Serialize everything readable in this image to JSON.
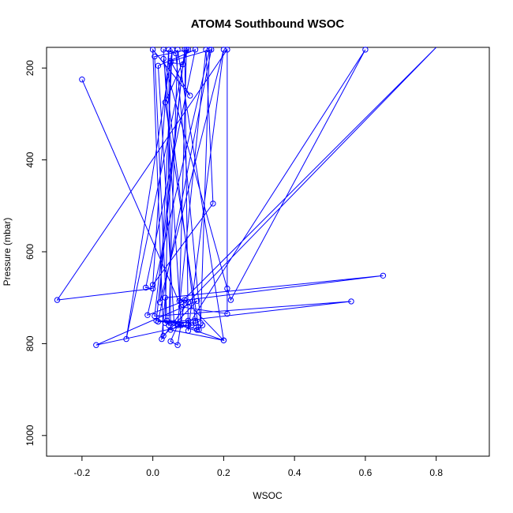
{
  "chart_data": {
    "type": "line",
    "title": "ATOM4 Southbound WSOC",
    "xlabel": "WSOC",
    "ylabel": "Pressure (mbar)",
    "xlim": [
      -0.3,
      0.95
    ],
    "ylim": [
      1045,
      155
    ],
    "y_inverted": true,
    "x_ticks": [
      {
        "value": -0.2,
        "label": "-0.2"
      },
      {
        "value": 0.0,
        "label": "0.0"
      },
      {
        "value": 0.2,
        "label": "0.2"
      },
      {
        "value": 0.4,
        "label": "0.4"
      },
      {
        "value": 0.6,
        "label": "0.6"
      },
      {
        "value": 0.8,
        "label": "0.8"
      }
    ],
    "y_ticks": [
      {
        "value": 200,
        "label": "200"
      },
      {
        "value": 400,
        "label": "400"
      },
      {
        "value": 600,
        "label": "600"
      },
      {
        "value": 800,
        "label": "800"
      },
      {
        "value": 1000,
        "label": "1000"
      }
    ],
    "marker": "open-circle",
    "grid": false,
    "color": "#0000ff",
    "series": [
      {
        "points": [
          [
            -0.2,
            225
          ],
          [
            0.08,
            720
          ],
          [
            0.21,
            735
          ],
          [
            0.21,
            160
          ],
          [
            -0.27,
            705
          ],
          [
            0.0,
            680
          ],
          [
            -0.02,
            678
          ],
          [
            0.12,
            160
          ],
          [
            0.015,
            195
          ],
          [
            0.06,
            755
          ],
          [
            0.13,
            770
          ],
          [
            0.035,
            275
          ],
          [
            0.1,
            160
          ],
          [
            0.005,
            175
          ],
          [
            0.04,
            750
          ],
          [
            0.2,
            793
          ],
          [
            0.07,
            160
          ],
          [
            0.045,
            760
          ],
          [
            0.05,
            755
          ],
          [
            0.045,
            160
          ],
          [
            0.0,
            672
          ],
          [
            0.17,
            495
          ],
          [
            0.15,
            160
          ],
          [
            0.07,
            757
          ],
          [
            0.08,
            760
          ],
          [
            0.03,
            160
          ],
          [
            0.065,
            168
          ],
          [
            0.135,
            755
          ],
          [
            0.16,
            160
          ],
          [
            -0.015,
            738
          ],
          [
            0.08,
            710
          ],
          [
            0.8,
            155
          ],
          [
            0.1,
            710
          ],
          [
            0.025,
            790
          ],
          [
            0.035,
            700
          ],
          [
            0.65,
            652
          ],
          [
            0.075,
            707
          ],
          [
            0.095,
            160
          ],
          [
            -0.075,
            790
          ],
          [
            0.055,
            160
          ],
          [
            0.02,
            710
          ],
          [
            0.2,
            160
          ],
          [
            0.1,
            772
          ],
          [
            0.09,
            160
          ],
          [
            0.005,
            740
          ],
          [
            0.56,
            708
          ],
          [
            0.035,
            755
          ],
          [
            0.05,
            188
          ],
          [
            0.085,
            192
          ],
          [
            0.01,
            750
          ],
          [
            0.12,
            755
          ],
          [
            0.015,
            752
          ],
          [
            0.165,
            160
          ],
          [
            0.05,
            185
          ],
          [
            0.105,
            260
          ],
          [
            0.0,
            160
          ],
          [
            0.03,
            783
          ],
          [
            0.125,
            707
          ],
          [
            -0.16,
            803
          ],
          [
            0.1,
            760
          ],
          [
            0.6,
            160
          ],
          [
            0.22,
            705
          ],
          [
            0.21,
            680
          ],
          [
            0.03,
            180
          ],
          [
            0.12,
            750
          ],
          [
            0.125,
            770
          ],
          [
            0.14,
            760
          ],
          [
            0.07,
            760
          ],
          [
            0.05,
            795
          ],
          [
            0.07,
            803
          ],
          [
            0.09,
            705
          ],
          [
            0.2,
            793
          ],
          [
            0.05,
            770
          ],
          [
            0.1,
            750
          ],
          [
            0.11,
            760
          ]
        ]
      }
    ]
  }
}
